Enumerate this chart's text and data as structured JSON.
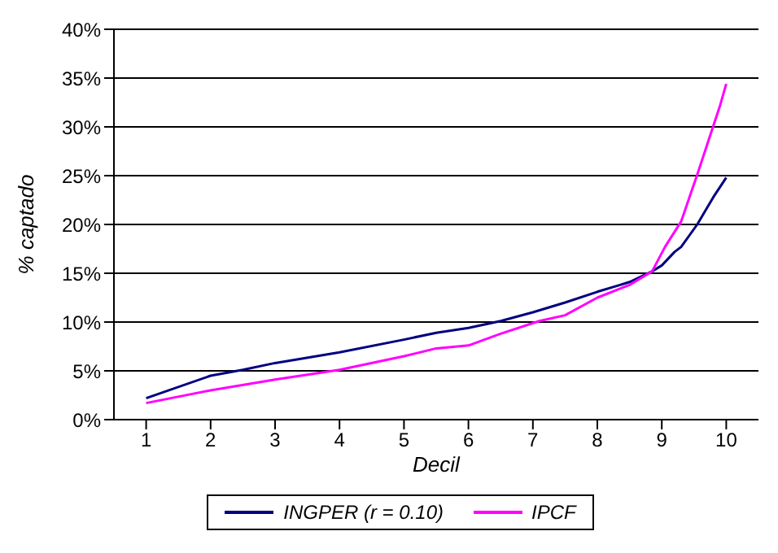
{
  "chart_data": {
    "type": "line",
    "xlabel": "Decil",
    "ylabel": "% captado",
    "xlim": [
      0.5,
      10.5
    ],
    "xticks": [
      1,
      2,
      3,
      4,
      5,
      6,
      7,
      8,
      9,
      10
    ],
    "ylim": [
      0,
      40
    ],
    "yticks": [
      {
        "value": 0,
        "label": "0%"
      },
      {
        "value": 5,
        "label": "5%"
      },
      {
        "value": 10,
        "label": "10%"
      },
      {
        "value": 15,
        "label": "15%"
      },
      {
        "value": 20,
        "label": "20%"
      },
      {
        "value": 25,
        "label": "25%"
      },
      {
        "value": 30,
        "label": "30%"
      },
      {
        "value": 35,
        "label": "35%"
      },
      {
        "value": 40,
        "label": "40%"
      }
    ],
    "grid": "y",
    "legend": "bottom",
    "marker": "none",
    "line_style": "solid",
    "series": [
      {
        "name": "INGPER (r = 0.10)",
        "color": "#000080",
        "x": [
          1,
          2,
          2.5,
          3,
          4,
          5,
          5.5,
          6,
          6.5,
          7,
          7.5,
          8,
          8.5,
          8.85,
          9,
          9.2,
          9.3,
          9.55,
          9.8,
          10
        ],
        "values": [
          2.2,
          4.5,
          5.1,
          5.8,
          6.9,
          8.2,
          8.9,
          9.4,
          10.1,
          11,
          12,
          13.1,
          14.1,
          15.2,
          15.8,
          17.2,
          17.7,
          20,
          22.8,
          24.8
        ]
      },
      {
        "name": "IPCF",
        "color": "#ff00ff",
        "x": [
          1,
          2,
          3,
          4,
          5,
          5.5,
          6,
          6.5,
          7.1,
          7.5,
          8,
          8.5,
          8.85,
          9.05,
          9.3,
          9.55,
          9.8,
          9.9,
          10
        ],
        "values": [
          1.7,
          3,
          4.1,
          5.1,
          6.5,
          7.3,
          7.6,
          8.8,
          10.1,
          10.7,
          12.5,
          13.8,
          15.2,
          17.7,
          20.3,
          25.1,
          30.1,
          32.1,
          34.4
        ]
      }
    ]
  }
}
